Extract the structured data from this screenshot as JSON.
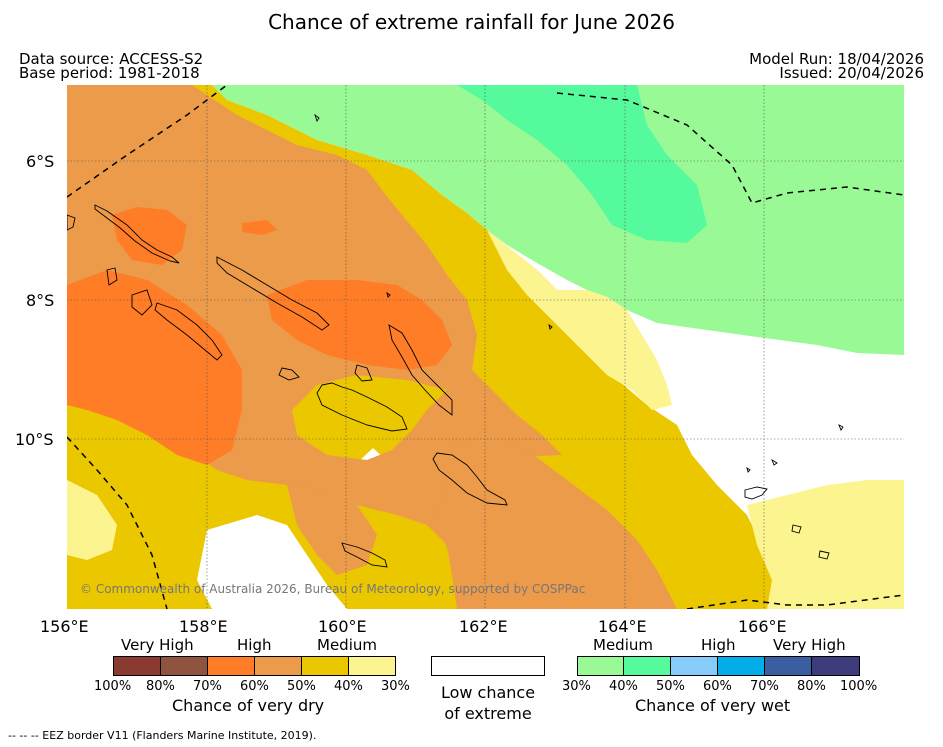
{
  "title": "Chance of extreme rainfall for June 2026",
  "header": {
    "data_source": "Data source: ACCESS-S2",
    "base_period": "Base period: 1981-2018",
    "model_run": "Model Run: 18/04/2026",
    "issued": "Issued: 20/04/2026"
  },
  "map": {
    "copyright": "© Commonwealth of Australia 2026, Bureau of Meteorology, supported by COSPPac",
    "lon_labels": [
      "156°E",
      "158°E",
      "160°E",
      "162°E",
      "164°E",
      "166°E"
    ],
    "lat_labels": [
      "6°S",
      "8°S",
      "10°S"
    ]
  },
  "legend": {
    "dry": {
      "categories": [
        "Very High",
        "High",
        "Medium"
      ],
      "percentages": [
        "100%",
        "80%",
        "70%",
        "60%",
        "50%",
        "40%",
        "30%"
      ],
      "colors": [
        "#8b3a32",
        "#8f5340",
        "#ff7d26",
        "#eb9b49",
        "#ebc700",
        "#fcf48f"
      ],
      "title": "Chance of very dry"
    },
    "neutral": {
      "line1": "Low chance",
      "line2": "of extreme",
      "color": "#ffffff"
    },
    "wet": {
      "categories": [
        "Medium",
        "High",
        "Very High"
      ],
      "percentages": [
        "30%",
        "40%",
        "50%",
        "60%",
        "70%",
        "80%",
        "100%"
      ],
      "colors": [
        "#99fa95",
        "#55fa9c",
        "#87cbfa",
        "#03adea",
        "#3a5ea0",
        "#3c3b7b"
      ],
      "title": "Chance of very wet"
    }
  },
  "footnote": "--  --  -- EEZ border V11 (Flanders Marine Institute, 2019)."
}
